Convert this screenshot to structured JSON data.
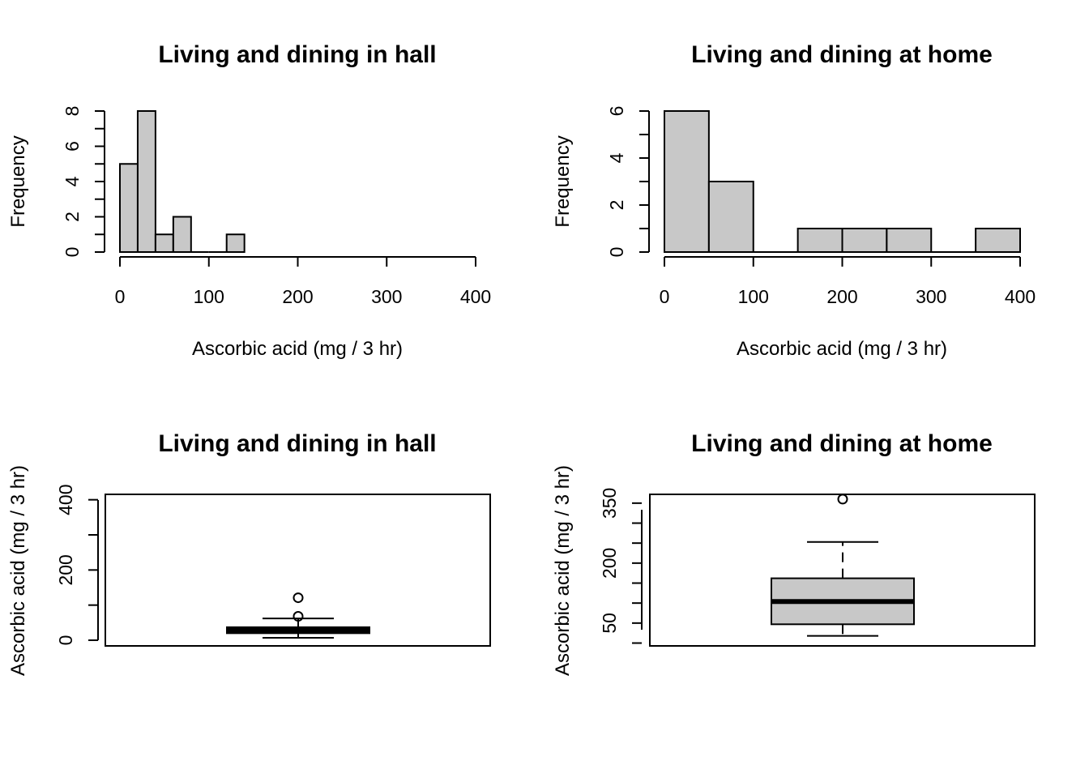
{
  "chart_data": [
    {
      "type": "histogram",
      "title": "Living and dining in hall",
      "xlabel": "Ascorbic acid (mg / 3 hr)",
      "ylabel": "Frequency",
      "xlim": [
        0,
        400
      ],
      "ylim": [
        0,
        8
      ],
      "xticks": [
        "0",
        "100",
        "200",
        "300",
        "400"
      ],
      "yticks": [
        "0",
        "2",
        "4",
        "6",
        "8"
      ],
      "bin_edges": [
        0,
        20,
        40,
        60,
        80,
        100,
        120,
        140
      ],
      "counts": [
        5,
        8,
        1,
        2,
        0,
        0,
        1
      ],
      "bar_color": "#c8c8c8"
    },
    {
      "type": "histogram",
      "title": "Living and dining at home",
      "xlabel": "Ascorbic acid (mg / 3 hr)",
      "ylabel": "Frequency",
      "xlim": [
        0,
        400
      ],
      "ylim": [
        0,
        6
      ],
      "xticks": [
        "0",
        "100",
        "200",
        "300",
        "400"
      ],
      "yticks": [
        "0",
        "2",
        "4",
        "6"
      ],
      "bin_edges": [
        0,
        50,
        100,
        150,
        200,
        250,
        300,
        350,
        400
      ],
      "counts": [
        6,
        3,
        0,
        1,
        1,
        1,
        0,
        1
      ],
      "bar_color": "#c8c8c8"
    },
    {
      "type": "boxplot",
      "title": "Living and dining in hall",
      "ylabel": "Ascorbic acid (mg / 3 hr)",
      "ylim": [
        0,
        400
      ],
      "yticks": [
        "0",
        "200",
        "400"
      ],
      "box": {
        "whisker_low": 7,
        "q1": 20,
        "median": 28,
        "q3": 37,
        "whisker_high": 62
      },
      "outliers": [
        68,
        121
      ],
      "box_color": "#c8c8c8"
    },
    {
      "type": "boxplot",
      "title": "Living and dining at home",
      "ylabel": "Ascorbic acid (mg / 3 hr)",
      "ylim": [
        0,
        400
      ],
      "yticks": [
        "50",
        "200",
        "350"
      ],
      "box": {
        "whisker_low": 18,
        "q1": 47,
        "median": 104,
        "q3": 162,
        "whisker_high": 253
      },
      "outliers": [
        360
      ],
      "box_color": "#c8c8c8"
    }
  ]
}
